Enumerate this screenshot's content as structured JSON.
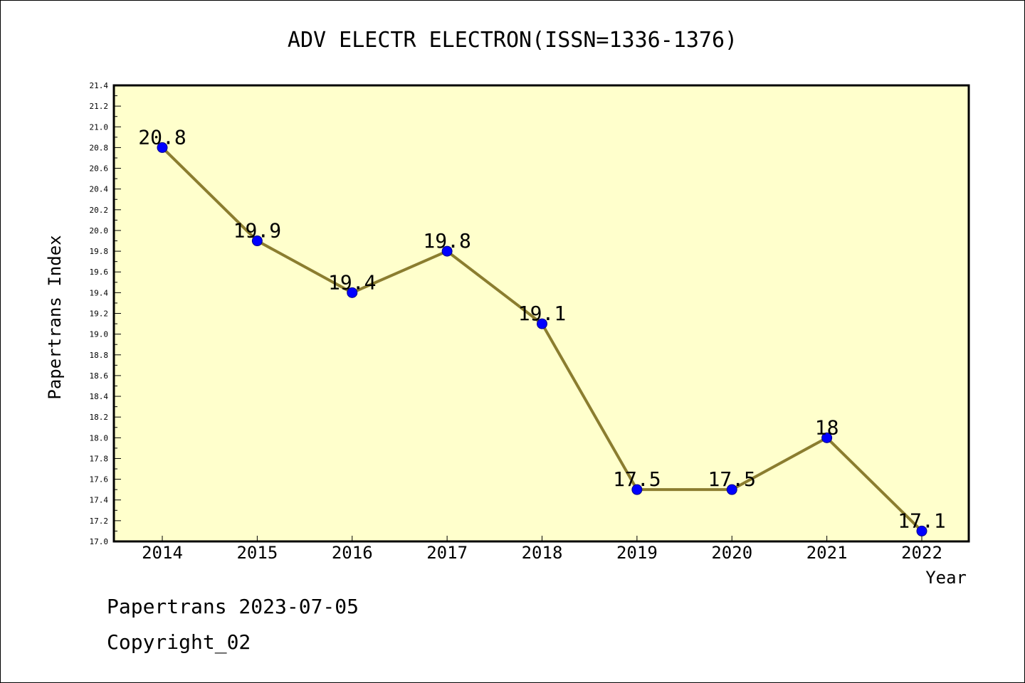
{
  "footer": {
    "line1": "Papertrans 2023-07-05",
    "line2": "Copyright_02"
  },
  "colors": {
    "plot_background": "#ffffcc",
    "line": "#8b7d2f",
    "marker": "#0000ff",
    "axis": "#000000"
  },
  "chart_data": {
    "type": "line",
    "title": "ADV ELECTR ELECTRON(ISSN=1336-1376)",
    "xlabel": "Year",
    "ylabel": "Papertrans Index",
    "categories": [
      "2014",
      "2015",
      "2016",
      "2017",
      "2018",
      "2019",
      "2020",
      "2021",
      "2022"
    ],
    "series": [
      {
        "values": [
          20.8,
          19.9,
          19.4,
          19.8,
          19.1,
          17.5,
          17.5,
          18.0,
          17.1
        ],
        "labels": [
          "20.8",
          "19.9",
          "19.4",
          "19.8",
          "19.1",
          "17.5",
          "17.5",
          "18",
          "17.1"
        ]
      }
    ],
    "ylim": [
      17.0,
      21.4
    ],
    "yticks": [
      "17.0",
      "17.2",
      "17.4",
      "17.6",
      "17.8",
      "18.0",
      "18.2",
      "18.4",
      "18.6",
      "18.8",
      "19.0",
      "19.2",
      "19.4",
      "19.6",
      "19.8",
      "20.0",
      "20.2",
      "20.4",
      "20.6",
      "20.8",
      "21.0",
      "21.2",
      "21.4"
    ],
    "grid": false,
    "legend": "none"
  }
}
